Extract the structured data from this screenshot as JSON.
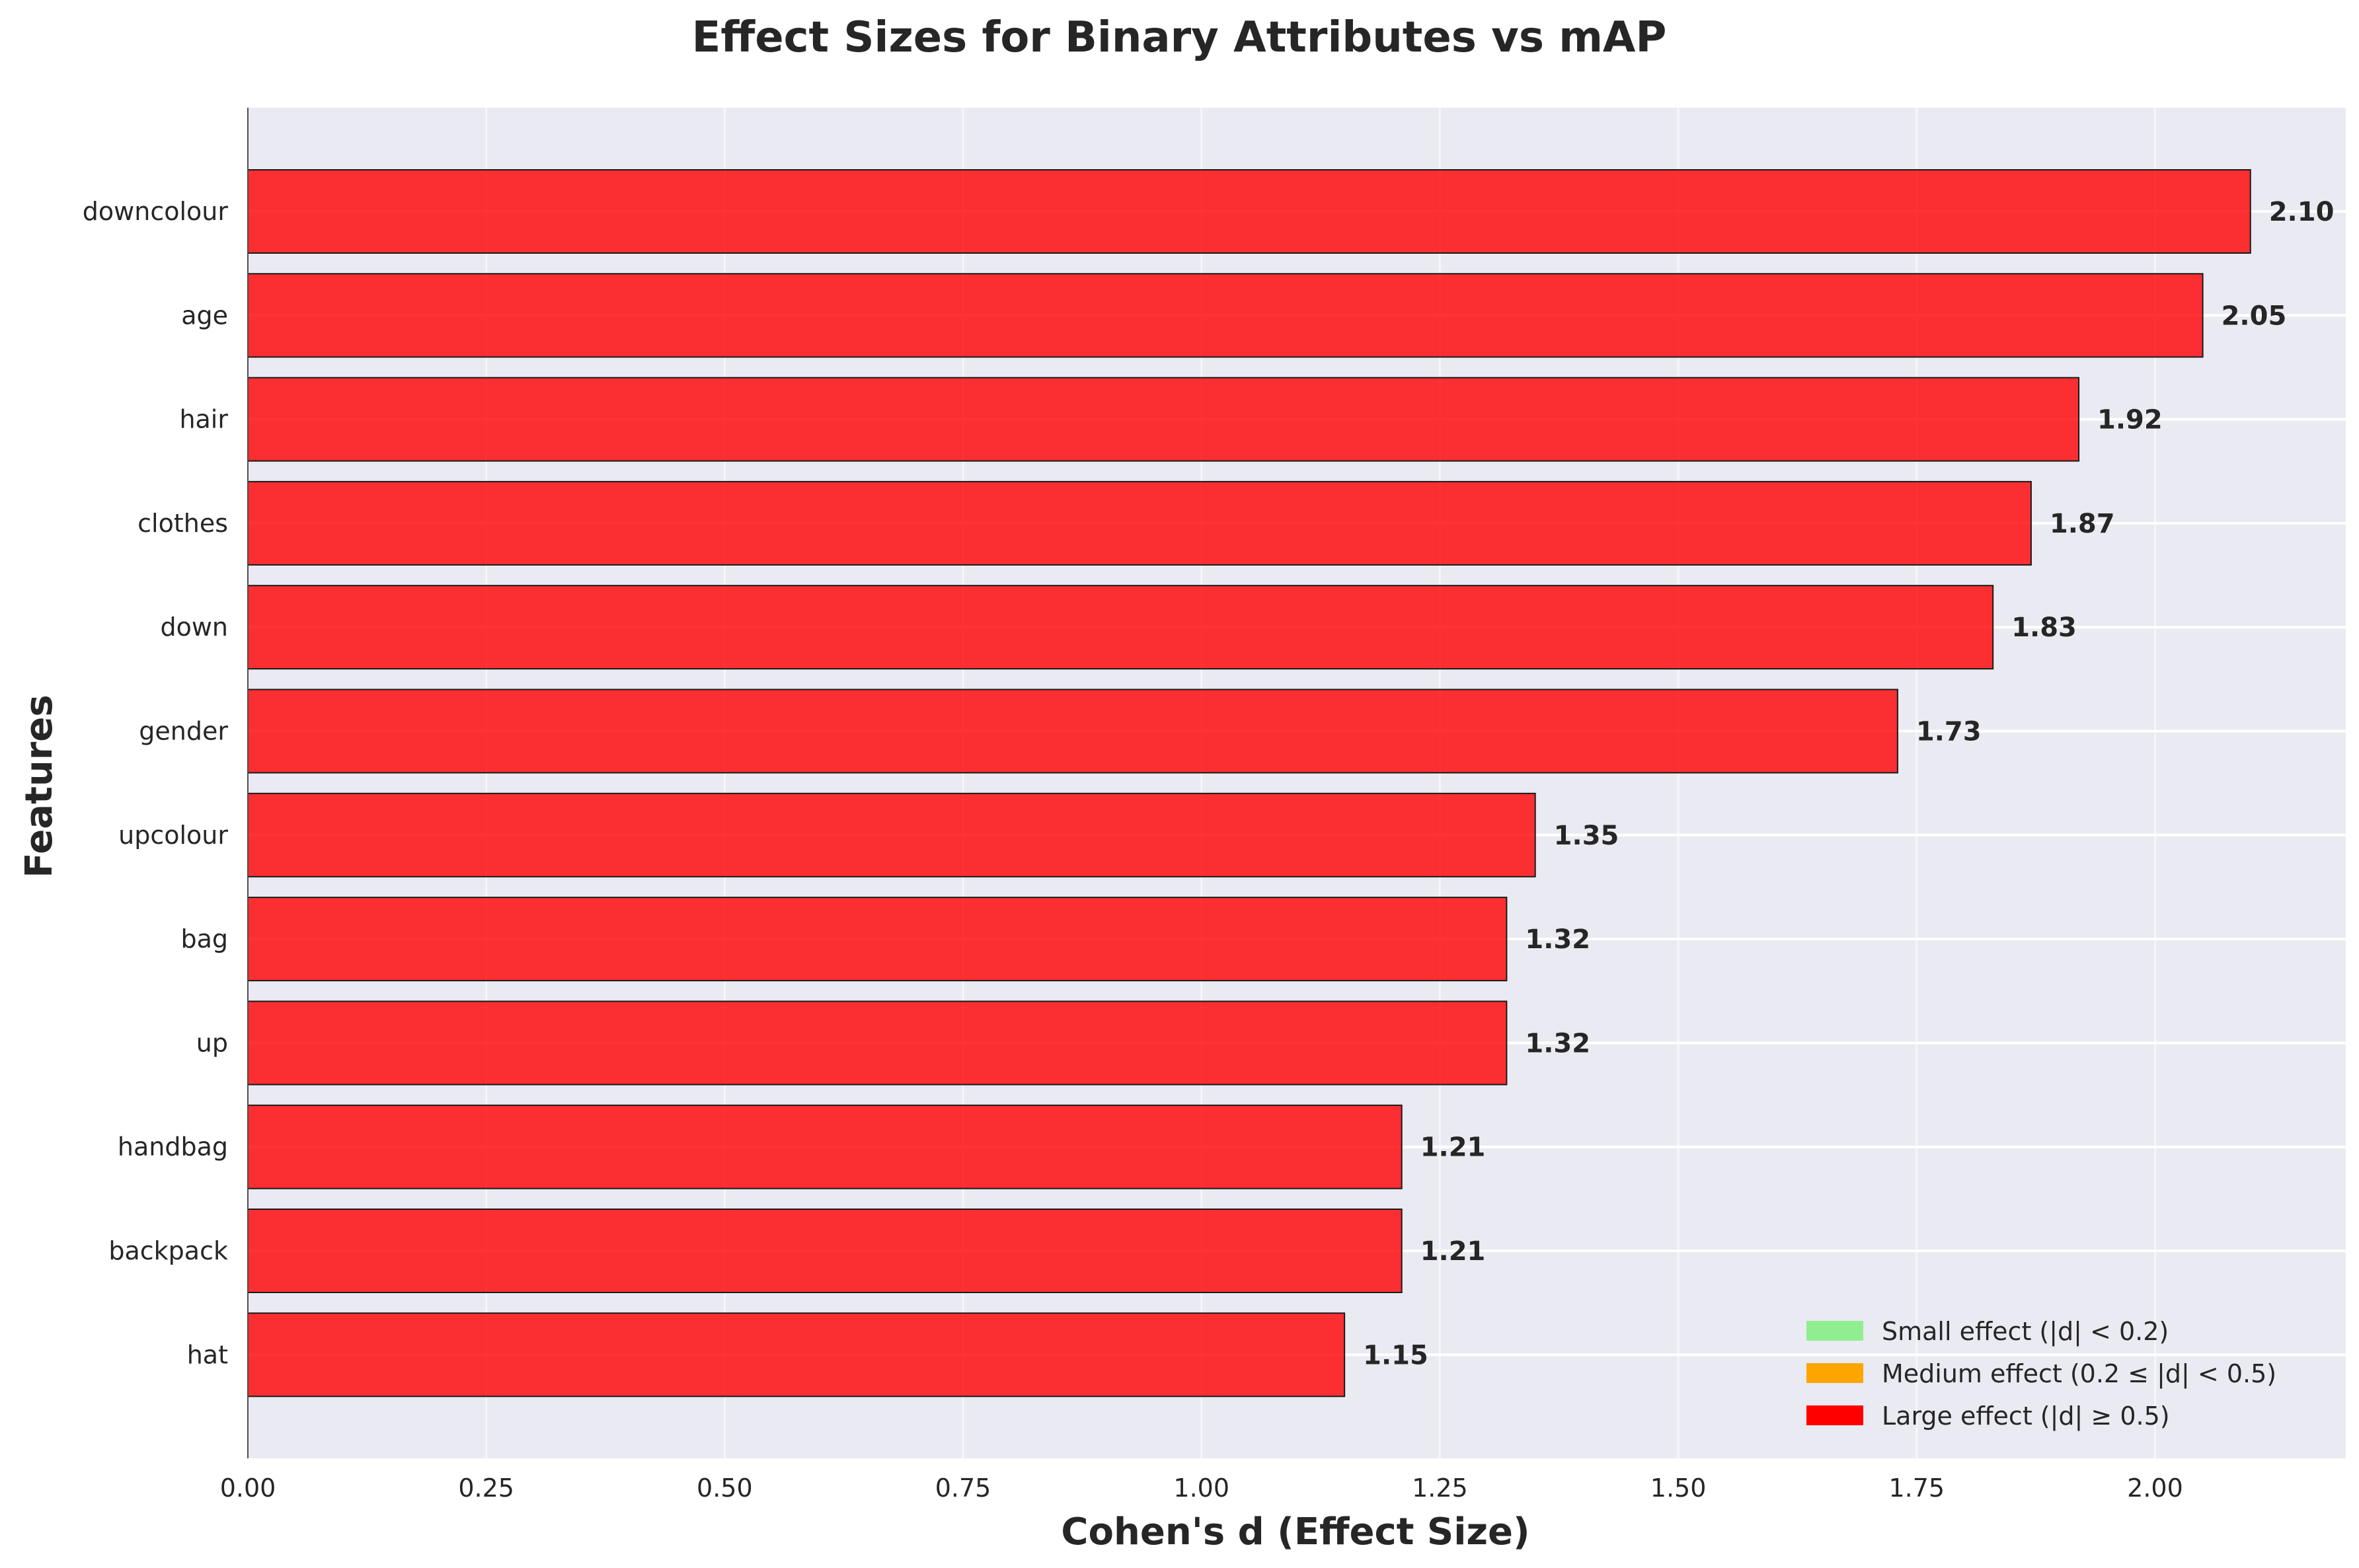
{
  "chart_data": {
    "type": "bar",
    "orientation": "horizontal",
    "title": "Effect Sizes for Binary Attributes vs mAP",
    "xlabel": "Cohen's d (Effect Size)",
    "ylabel": "Features",
    "xlim": [
      0,
      2.2
    ],
    "xticks": [
      0.0,
      0.25,
      0.5,
      0.75,
      1.0,
      1.25,
      1.5,
      1.75,
      2.0
    ],
    "xtick_labels": [
      "0.00",
      "0.25",
      "0.50",
      "0.75",
      "1.00",
      "1.25",
      "1.50",
      "1.75",
      "2.00"
    ],
    "grid": true,
    "categories": [
      "downcolour",
      "age",
      "hair",
      "clothes",
      "down",
      "gender",
      "upcolour",
      "bag",
      "up",
      "handbag",
      "backpack",
      "hat"
    ],
    "values": [
      2.1,
      2.05,
      1.92,
      1.87,
      1.83,
      1.73,
      1.35,
      1.32,
      1.32,
      1.21,
      1.21,
      1.15
    ],
    "value_labels": [
      "2.10",
      "2.05",
      "1.92",
      "1.87",
      "1.83",
      "1.73",
      "1.35",
      "1.32",
      "1.32",
      "1.21",
      "1.21",
      "1.15"
    ],
    "bar_color": "#ff0000",
    "legend": {
      "placement": "lower-right",
      "entries": [
        {
          "label": "Small effect (|d| < 0.2)",
          "color": "#90ee90"
        },
        {
          "label": "Medium effect (0.2 ≤ |d| < 0.5)",
          "color": "#ffa500"
        },
        {
          "label": "Large effect (|d| ≥ 0.5)",
          "color": "#ff0000"
        }
      ]
    }
  }
}
